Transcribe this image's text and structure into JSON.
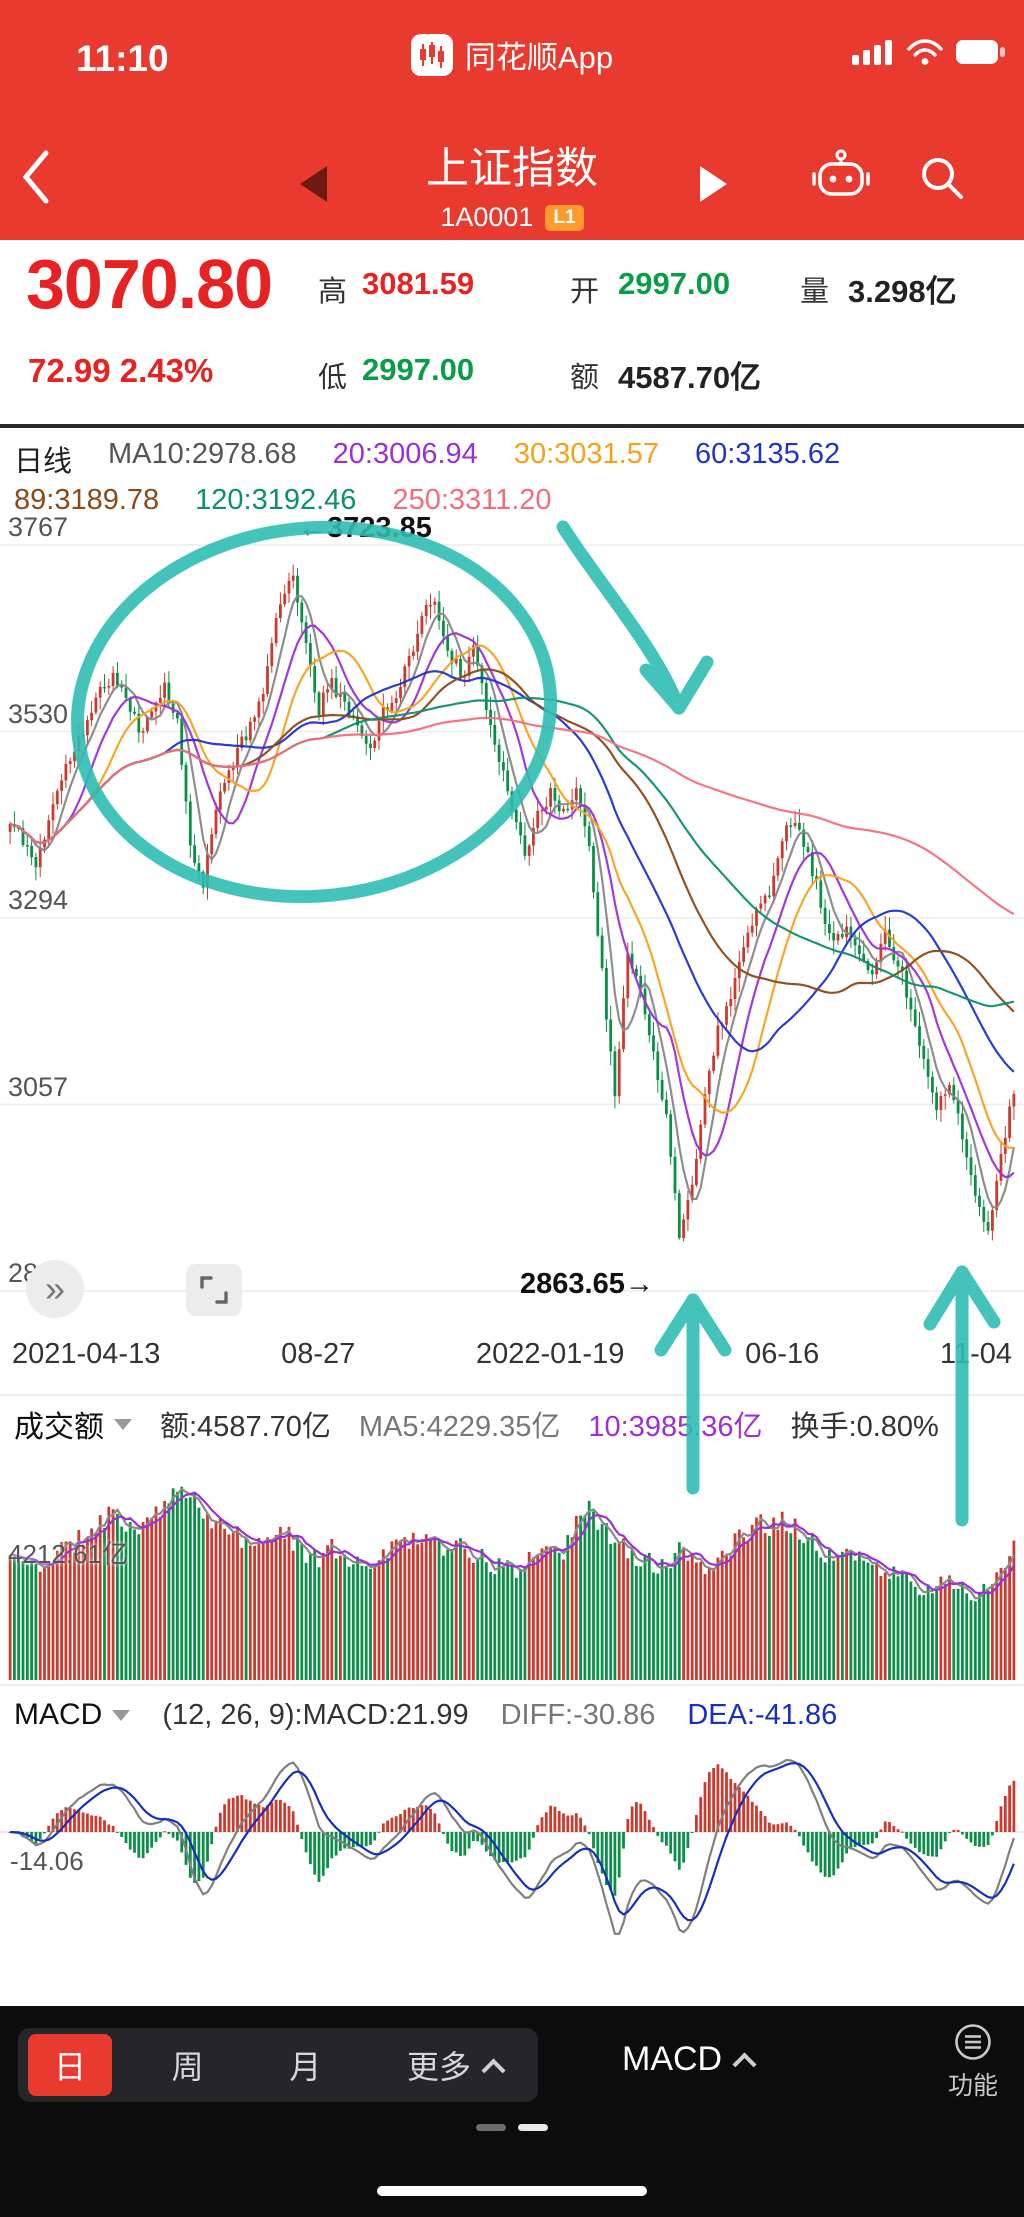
{
  "colors": {
    "app_red": "#e93a2f",
    "up_red": "#cc3a2d",
    "down_green": "#0a8f46",
    "annotation_teal": "#2ebdb2",
    "dea_blue": "#1a2fbd",
    "diff_gray": "#808080",
    "vol_ma5": "#8a8a8a",
    "vol_ma10": "#9b30d9"
  },
  "status_bar": {
    "time": "11:10",
    "app_name": "同花顺App"
  },
  "nav": {
    "title": "上证指数",
    "code": "1A0001",
    "badge": "L1"
  },
  "quote": {
    "price": "3070.80",
    "change": "72.99  2.43%",
    "high_label": "高",
    "high": "3081.59",
    "open_label": "开",
    "open": "2997.00",
    "volume_label": "量",
    "volume": "3.298亿",
    "low_label": "低",
    "low": "2997.00",
    "amount_label": "额",
    "amount": "4587.70亿"
  },
  "ma_header": {
    "period_label": "日线",
    "period_color": "#222222",
    "line1": [
      {
        "label": "MA10:2978.68",
        "color": "#555555"
      },
      {
        "label": "20:3006.94",
        "color": "#9b30d9"
      },
      {
        "label": "30:3031.57",
        "color": "#f7a11a"
      },
      {
        "label": "60:3135.62",
        "color": "#2233cc"
      }
    ],
    "line2": [
      {
        "label": "89:3189.78",
        "color": "#8b4a17"
      },
      {
        "label": "120:3192.46",
        "color": "#0d8f70"
      },
      {
        "label": "250:3311.20",
        "color": "#f56d7c"
      }
    ]
  },
  "chart": {
    "high_annotation": "←3723.85",
    "low_annotation": "2863.65→",
    "history_button_icon": "»"
  },
  "chart_data": {
    "type": "candlestick",
    "title": "上证指数 1A0001 日线",
    "y_axis_labels": [
      3767,
      3530,
      3294,
      3057,
      2821
    ],
    "x_axis_labels": [
      "2021-04-13",
      "08-27",
      "2022-01-19",
      "06-16",
      "11-04"
    ],
    "high_point": 3723.85,
    "low_point": 2863.65,
    "last_close": 3070.8,
    "ma_windows": [
      10,
      20,
      30,
      60,
      89,
      120,
      250
    ],
    "ma_colors": [
      "#888888",
      "#9b30d9",
      "#f7a11a",
      "#2233cc",
      "#8b4a17",
      "#0d8f70",
      "#f56d7c"
    ],
    "ma_values_now": [
      2978.68,
      3006.94,
      3031.57,
      3135.62,
      3189.78,
      3192.46,
      3311.2
    ],
    "closes_sampled": [
      3413,
      3395,
      3360,
      3420,
      3470,
      3510,
      3540,
      3580,
      3605,
      3570,
      3530,
      3560,
      3590,
      3540,
      3390,
      3340,
      3430,
      3480,
      3520,
      3540,
      3610,
      3700,
      3723,
      3640,
      3560,
      3590,
      3570,
      3540,
      3500,
      3560,
      3580,
      3620,
      3680,
      3690,
      3640,
      3600,
      3630,
      3560,
      3500,
      3440,
      3380,
      3420,
      3450,
      3430,
      3460,
      3380,
      3230,
      3060,
      3250,
      3200,
      3120,
      3050,
      2886,
      2960,
      3070,
      3150,
      3200,
      3260,
      3300,
      3330,
      3400,
      3420,
      3380,
      3310,
      3260,
      3280,
      3250,
      3230,
      3270,
      3240,
      3180,
      3120,
      3050,
      3090,
      3020,
      2950,
      2893,
      2997,
      3071
    ],
    "volumes_sampled": [
      4100,
      3900,
      3700,
      4000,
      4300,
      4500,
      4800,
      5200,
      5600,
      5200,
      4900,
      5300,
      5800,
      6100,
      6000,
      5600,
      5100,
      4800,
      4600,
      4500,
      4700,
      5000,
      4600,
      4200,
      4000,
      4300,
      4100,
      3900,
      3800,
      4200,
      4400,
      4600,
      4800,
      4500,
      4200,
      4400,
      4100,
      3900,
      3700,
      3600,
      3800,
      4200,
      4500,
      4300,
      5200,
      5600,
      5000,
      4600,
      4200,
      4000,
      3800,
      3600,
      4200,
      3900,
      3700,
      4100,
      4400,
      4800,
      5200,
      5000,
      5300,
      5100,
      4700,
      4300,
      4000,
      4200,
      3900,
      3700,
      3600,
      3400,
      3200,
      3100,
      3000,
      3300,
      3100,
      2900,
      2800,
      3500,
      4587
    ],
    "volume_axis_max": 7500,
    "macd_display": {
      "macd": 21.99,
      "diff": -30.86,
      "dea": -41.86
    }
  },
  "volume_panel": {
    "title": "成交额",
    "stats": [
      {
        "label": "额:4587.70亿",
        "color": "#333333"
      },
      {
        "label": "MA5:4229.35亿",
        "color": "#777777"
      },
      {
        "label": "10:3985.36亿",
        "color": "#9b30d9"
      },
      {
        "label": "换手:0.80%",
        "color": "#333333"
      }
    ],
    "axis_label": "4212.61亿"
  },
  "macd_panel": {
    "title": "MACD",
    "stats": [
      {
        "label": "(12, 26, 9):MACD:21.99",
        "color": "#333333"
      },
      {
        "label": "DIFF:-30.86",
        "color": "#777777"
      },
      {
        "label": "DEA:-41.86",
        "color": "#1a2fbd"
      }
    ],
    "axis_label": "-14.06"
  },
  "toolbar": {
    "tabs": [
      {
        "label": "日",
        "active": true
      },
      {
        "label": "周",
        "active": false
      },
      {
        "label": "月",
        "active": false
      },
      {
        "label": "更多",
        "active": false
      }
    ],
    "indicator_label": "MACD",
    "fn_label": "功能"
  }
}
